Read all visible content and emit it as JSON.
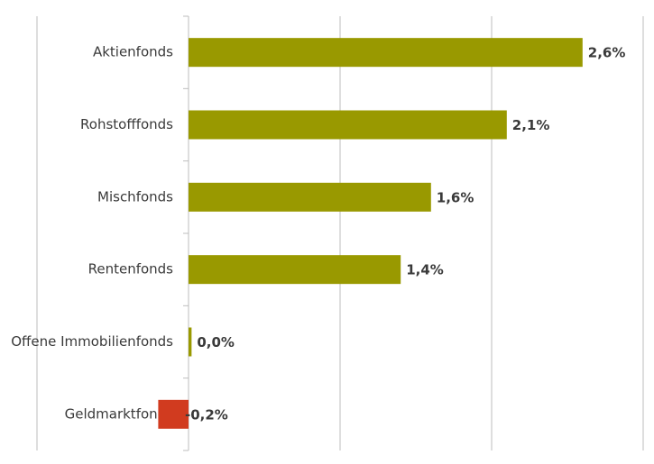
{
  "chart_data": {
    "type": "hbar",
    "categories": [
      "Aktienfonds",
      "Rohstofffonds",
      "Mischfonds",
      "Rentenfonds",
      "Offene Immobilienfonds",
      "Geldmarktfonds"
    ],
    "values": [
      2.6,
      2.1,
      1.6,
      1.4,
      0.02,
      -0.2
    ],
    "value_labels": [
      "2,6%",
      "2,1%",
      "1,6%",
      "1,4%",
      "0,0%",
      "-0,2%"
    ],
    "colors": [
      "#999900",
      "#999900",
      "#999900",
      "#999900",
      "#999900",
      "#d13b1f"
    ],
    "xlim": [
      -1,
      3
    ],
    "xticks": [
      -1,
      0,
      1,
      2,
      3
    ],
    "grid": true
  }
}
